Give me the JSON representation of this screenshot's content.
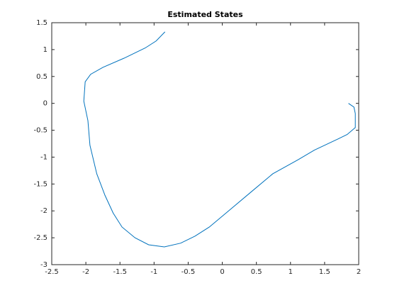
{
  "chart_data": {
    "type": "line",
    "title": "Estimated States",
    "series": [
      {
        "color": "#0072bd",
        "x": [
          1.85,
          1.93,
          1.95,
          1.95,
          1.83,
          1.7,
          1.35,
          1.11,
          0.74,
          0.43,
          0.12,
          -0.19,
          -0.4,
          -0.61,
          -0.85,
          -1.08,
          -1.28,
          -1.47,
          -1.6,
          -1.72,
          -1.84,
          -1.94,
          -1.97,
          -2.03,
          -2.01,
          -1.93,
          -1.75,
          -1.44,
          -1.13,
          -0.97,
          -0.84
        ],
        "values": [
          0,
          -0.07,
          -0.19,
          -0.45,
          -0.58,
          -0.66,
          -0.87,
          -1.05,
          -1.31,
          -1.64,
          -1.97,
          -2.3,
          -2.47,
          -2.6,
          -2.67,
          -2.63,
          -2.5,
          -2.3,
          -2.04,
          -1.71,
          -1.31,
          -0.78,
          -0.32,
          0.04,
          0.4,
          0.54,
          0.67,
          0.84,
          1.03,
          1.16,
          1.33
        ]
      }
    ],
    "xlim": [
      -2.5,
      2
    ],
    "xticks": [
      -2.5,
      -2,
      -1.5,
      -1,
      -0.5,
      0,
      0.5,
      1,
      1.5,
      2
    ],
    "ylim": [
      -3,
      1.5
    ],
    "yticks": [
      -3,
      -2.5,
      -2,
      -1.5,
      -1,
      -0.5,
      0,
      0.5,
      1,
      1.5
    ],
    "grid": false
  }
}
